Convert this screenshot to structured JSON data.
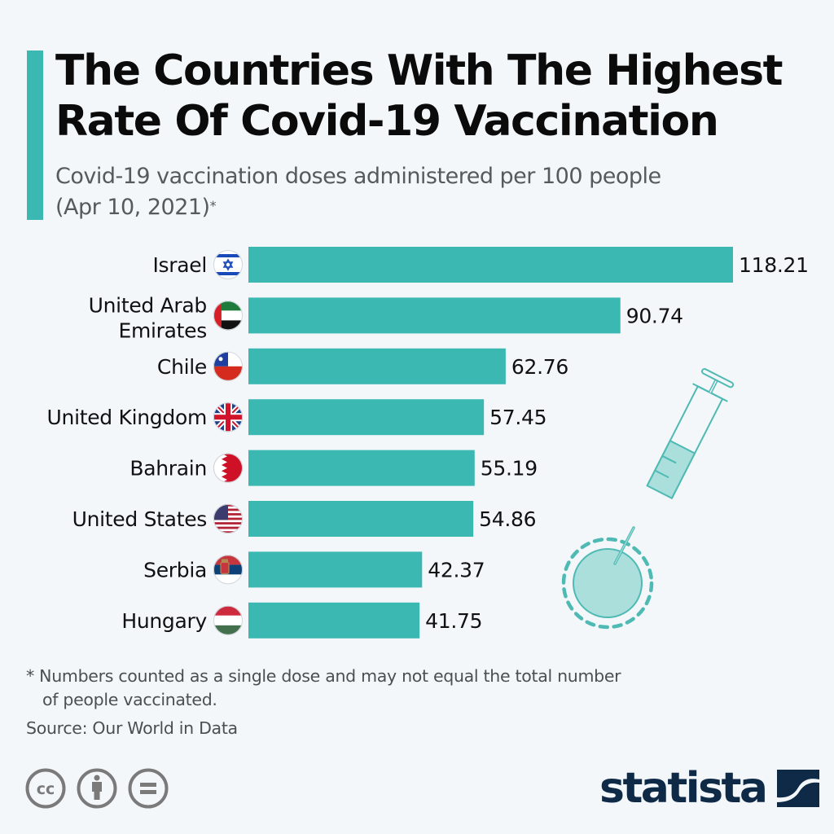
{
  "header": {
    "title_line1": "The Countries With The Highest",
    "title_line2": "Rate Of Covid-19 Vaccination",
    "subtitle_line1": "Covid-19 vaccination doses administered per 100 people",
    "subtitle_line2": "(Apr 10, 2021)",
    "subtitle_marker": "*"
  },
  "colors": {
    "accent": "#3cb8b2",
    "bar": "#3cb8b2",
    "background": "#f3f7fa",
    "brand": "#0f2a47"
  },
  "chart_data": {
    "type": "bar",
    "orientation": "horizontal",
    "title": "The Countries With The Highest Rate Of Covid-19 Vaccination",
    "subtitle": "Covid-19 vaccination doses administered per 100 people (Apr 10, 2021)*",
    "xlabel": "",
    "ylabel": "",
    "xlim": [
      0,
      118.21
    ],
    "grid": false,
    "legend": "none",
    "categories": [
      {
        "label_lines": [
          "Israel"
        ],
        "flag": "israel-flag-icon"
      },
      {
        "label_lines": [
          "United Arab",
          "Emirates"
        ],
        "flag": "uae-flag-icon"
      },
      {
        "label_lines": [
          "Chile"
        ],
        "flag": "chile-flag-icon"
      },
      {
        "label_lines": [
          "United Kingdom"
        ],
        "flag": "uk-flag-icon"
      },
      {
        "label_lines": [
          "Bahrain"
        ],
        "flag": "bahrain-flag-icon"
      },
      {
        "label_lines": [
          "United States"
        ],
        "flag": "us-flag-icon"
      },
      {
        "label_lines": [
          "Serbia"
        ],
        "flag": "serbia-flag-icon"
      },
      {
        "label_lines": [
          "Hungary"
        ],
        "flag": "hungary-flag-icon"
      }
    ],
    "values": [
      118.21,
      90.74,
      62.76,
      57.45,
      55.19,
      54.86,
      42.37,
      41.75
    ],
    "value_labels": [
      "118.21",
      "90.74",
      "62.76",
      "57.45",
      "55.19",
      "54.86",
      "42.37",
      "41.75"
    ]
  },
  "illustration": {
    "icon": "syringe-icon"
  },
  "footer": {
    "footnote_line1": "* Numbers counted as a single dose and may not equal the total number",
    "footnote_line2": "of people vaccinated.",
    "source": "Source: Our World in Data",
    "license_icons": [
      "cc-icon",
      "attribution-icon",
      "no-derivatives-icon"
    ],
    "brand": "statista"
  }
}
